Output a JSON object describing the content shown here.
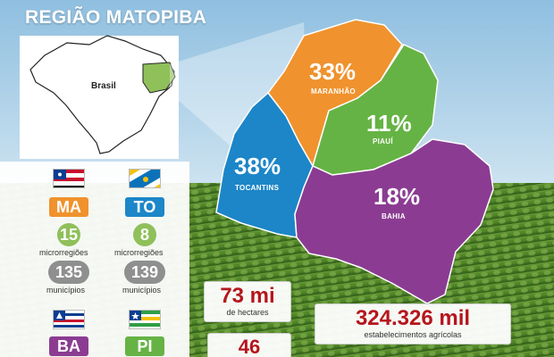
{
  "title": "REGIÃO MATOPIBA",
  "inset": {
    "country_label": "Brasil"
  },
  "states": [
    {
      "key": "maranhao",
      "name": "MARANHÃO",
      "percent": "33%",
      "color": "#f0922d"
    },
    {
      "key": "piaui",
      "name": "PIAUÍ",
      "percent": "11%",
      "color": "#66b345"
    },
    {
      "key": "tocantins",
      "name": "TOCANTINS",
      "percent": "38%",
      "color": "#1c86c8"
    },
    {
      "key": "bahia",
      "name": "BAHIA",
      "percent": "18%",
      "color": "#8b3c92"
    }
  ],
  "legend": {
    "ma": {
      "abbr": "MA",
      "color": "#f0922d",
      "microrregioes": "15",
      "micro_label": "microrregiões",
      "municipios": "135",
      "muni_label": "municípios"
    },
    "to": {
      "abbr": "TO",
      "color": "#1c86c8",
      "microrregioes": "8",
      "micro_label": "microrregiões",
      "municipios": "139",
      "muni_label": "municípios"
    },
    "ba": {
      "abbr": "BA",
      "color": "#8b3c92"
    },
    "pi": {
      "abbr": "PI",
      "color": "#66b345"
    }
  },
  "stats": {
    "area_value": "73 mi",
    "area_label": "de hectares",
    "establishments_value": "324.326 mil",
    "establishments_label": "estabelecimentos agrícolas",
    "partial_value": "46"
  }
}
